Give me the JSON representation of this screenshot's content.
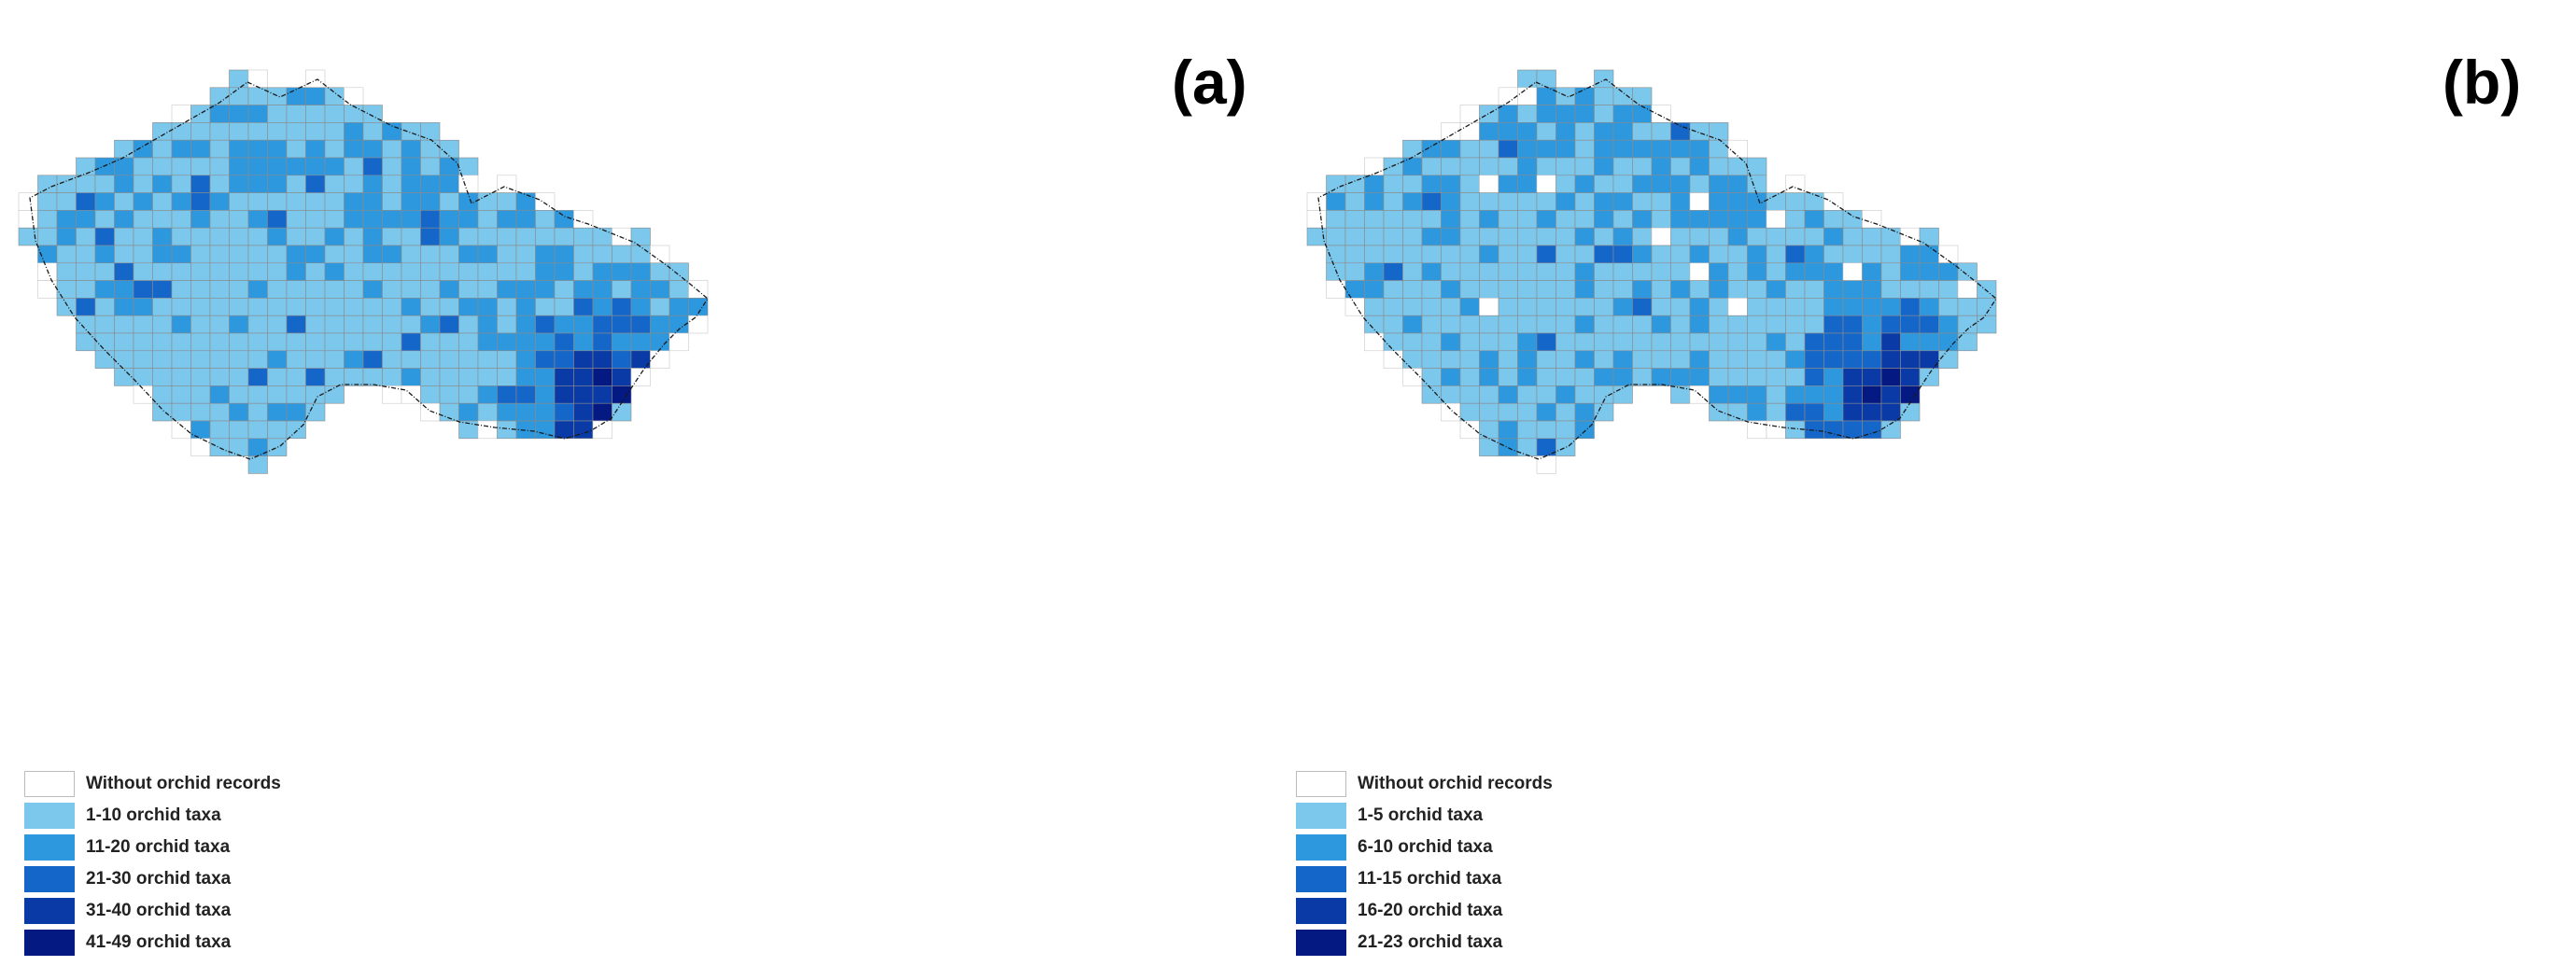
{
  "panels": [
    {
      "label": "(a)",
      "legend": [
        {
          "label": "Without orchid records",
          "color": "#ffffff"
        },
        {
          "label": "1-10 orchid taxa",
          "color": "#7cc7ec"
        },
        {
          "label": "11-20 orchid taxa",
          "color": "#2d98de"
        },
        {
          "label": "21-30 orchid taxa",
          "color": "#1566c9"
        },
        {
          "label": "31-40 orchid taxa",
          "color": "#0a3aa5"
        },
        {
          "label": "41-49 orchid taxa",
          "color": "#041a82"
        }
      ]
    },
    {
      "label": "(b)",
      "legend": [
        {
          "label": "Without orchid records",
          "color": "#ffffff"
        },
        {
          "label": "1-5 orchid taxa",
          "color": "#7cc7ec"
        },
        {
          "label": "6-10 orchid taxa",
          "color": "#2d98de"
        },
        {
          "label": "11-15 orchid taxa",
          "color": "#1566c9"
        },
        {
          "label": "16-20 orchid taxa",
          "color": "#0a3aa5"
        },
        {
          "label": "21-23 orchid taxa",
          "color": "#041a82"
        }
      ]
    }
  ],
  "colors": {
    "grid_line": "#8a8a8a",
    "border_line": "#1a1a1a"
  }
}
